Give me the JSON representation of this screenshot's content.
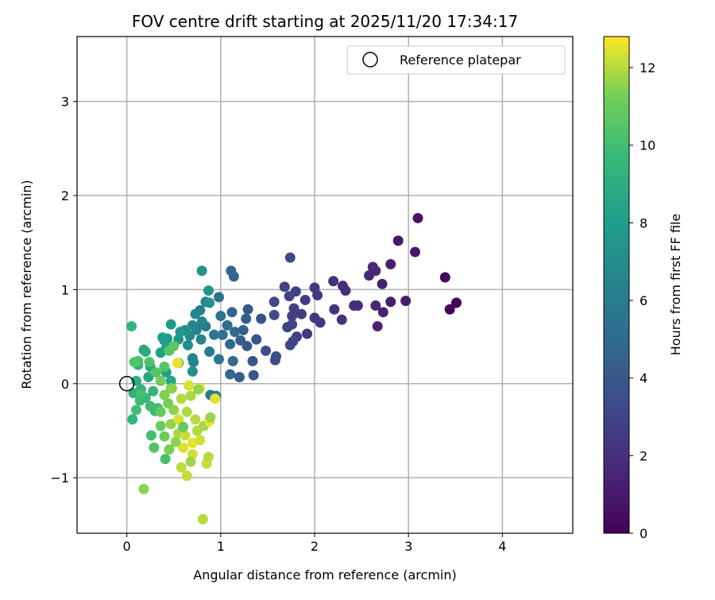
{
  "chart_data": {
    "type": "scatter",
    "title": "FOV centre drift starting at 2025/11/20 17:34:17",
    "xlabel": "Angular distance from reference (arcmin)",
    "ylabel": "Rotation from reference (arcmin)",
    "xlim": [
      -0.53,
      4.75
    ],
    "ylim": [
      -1.59,
      3.69
    ],
    "xticks": [
      0,
      1,
      2,
      3,
      4
    ],
    "yticks": [
      -1,
      0,
      1,
      2,
      3
    ],
    "ytick_labels": [
      "−1",
      "0",
      "1",
      "2",
      "3"
    ],
    "grid": true,
    "legend": {
      "placement": "top-right",
      "entries": [
        "Reference platepar"
      ]
    },
    "reference_point": [
      0,
      0
    ],
    "colorbar": {
      "label": "Hours from first FF file",
      "range": [
        0,
        12.8
      ],
      "ticks": [
        0,
        2,
        4,
        6,
        8,
        10,
        12
      ],
      "colormap": "viridis"
    },
    "colormap_stops": [
      "#440154",
      "#482878",
      "#3e4989",
      "#31688e",
      "#26828e",
      "#1f9e89",
      "#35b779",
      "#6ece58",
      "#fde725"
    ],
    "points_fields": [
      "x",
      "y",
      "hours"
    ],
    "points": [
      [
        3.51,
        0.86,
        0.1
      ],
      [
        3.44,
        0.79,
        0.2
      ],
      [
        3.39,
        1.13,
        0.3
      ],
      [
        3.1,
        1.76,
        0.8
      ],
      [
        3.07,
        1.4,
        0.9
      ],
      [
        2.89,
        1.52,
        1.0
      ],
      [
        2.97,
        0.88,
        1.1
      ],
      [
        2.81,
        1.27,
        1.2
      ],
      [
        2.81,
        0.87,
        1.2
      ],
      [
        2.72,
        1.06,
        1.3
      ],
      [
        2.73,
        0.76,
        1.4
      ],
      [
        2.67,
        0.61,
        1.4
      ],
      [
        2.65,
        0.83,
        1.5
      ],
      [
        2.62,
        1.24,
        1.5
      ],
      [
        2.58,
        1.15,
        1.6
      ],
      [
        2.65,
        1.2,
        1.6
      ],
      [
        2.46,
        0.83,
        1.8
      ],
      [
        2.42,
        0.83,
        1.9
      ],
      [
        2.33,
        0.99,
        2.0
      ],
      [
        2.3,
        1.04,
        2.0
      ],
      [
        2.29,
        0.68,
        2.1
      ],
      [
        2.2,
        1.09,
        2.1
      ],
      [
        2.21,
        0.79,
        2.2
      ],
      [
        2.06,
        0.65,
        2.3
      ],
      [
        2.03,
        0.94,
        2.3
      ],
      [
        2.0,
        1.02,
        2.4
      ],
      [
        2.0,
        0.7,
        2.4
      ],
      [
        1.9,
        0.89,
        2.5
      ],
      [
        1.92,
        0.53,
        2.5
      ],
      [
        1.86,
        0.74,
        2.6
      ],
      [
        1.8,
        0.98,
        2.7
      ],
      [
        1.81,
        0.5,
        2.7
      ],
      [
        1.78,
        0.8,
        2.8
      ],
      [
        1.76,
        0.72,
        2.8
      ],
      [
        1.73,
        0.93,
        2.9
      ],
      [
        1.68,
        1.03,
        2.9
      ],
      [
        1.74,
        1.34,
        3.1
      ],
      [
        1.71,
        0.6,
        3.0
      ],
      [
        1.76,
        0.63,
        3.0
      ],
      [
        1.74,
        0.41,
        3.1
      ],
      [
        1.77,
        0.45,
        3.1
      ],
      [
        1.57,
        0.87,
        3.3
      ],
      [
        1.57,
        0.73,
        3.3
      ],
      [
        1.58,
        0.25,
        3.4
      ],
      [
        1.59,
        0.29,
        3.4
      ],
      [
        1.48,
        0.35,
        3.5
      ],
      [
        1.43,
        0.69,
        3.6
      ],
      [
        1.38,
        0.47,
        3.7
      ],
      [
        1.35,
        0.09,
        3.8
      ],
      [
        1.34,
        0.24,
        3.9
      ],
      [
        1.29,
        0.79,
        4.0
      ],
      [
        1.28,
        0.4,
        4.1
      ],
      [
        1.27,
        0.69,
        4.2
      ],
      [
        1.2,
        0.07,
        4.3
      ],
      [
        1.21,
        0.46,
        4.4
      ],
      [
        1.24,
        0.57,
        4.5
      ],
      [
        1.12,
        0.76,
        4.6
      ],
      [
        1.11,
        1.2,
        4.7
      ],
      [
        1.14,
        1.14,
        4.7
      ],
      [
        1.1,
        0.1,
        4.8
      ],
      [
        1.1,
        0.42,
        4.9
      ],
      [
        1.13,
        0.24,
        5.0
      ],
      [
        1.15,
        0.55,
        5.1
      ],
      [
        1.07,
        0.62,
        5.2
      ],
      [
        1.02,
        0.52,
        5.3
      ],
      [
        1.0,
        0.72,
        5.4
      ],
      [
        0.98,
        0.92,
        5.5
      ],
      [
        0.98,
        0.26,
        5.6
      ],
      [
        0.93,
        0.52,
        5.7
      ],
      [
        0.88,
        0.34,
        5.8
      ],
      [
        0.84,
        0.61,
        5.9
      ],
      [
        0.8,
        0.63,
        6.0
      ],
      [
        0.78,
        0.78,
        6.1
      ],
      [
        0.84,
        0.87,
        6.2
      ],
      [
        0.74,
        0.57,
        6.3
      ],
      [
        0.71,
        0.23,
        6.4
      ],
      [
        0.7,
        0.27,
        6.5
      ],
      [
        0.8,
        0.66,
        6.5
      ],
      [
        0.79,
        0.47,
        6.6
      ],
      [
        0.73,
        0.74,
        6.7
      ],
      [
        0.7,
        0.62,
        6.8
      ],
      [
        0.67,
        0.51,
        6.9
      ],
      [
        0.65,
        0.41,
        7.0
      ],
      [
        0.62,
        0.57,
        7.1
      ],
      [
        0.7,
        0.13,
        7.2
      ],
      [
        0.89,
        -0.12,
        6.0
      ],
      [
        0.95,
        -0.13,
        5.5
      ],
      [
        0.8,
        1.2,
        7.3
      ],
      [
        0.88,
        0.86,
        7.4
      ],
      [
        0.87,
        0.99,
        7.5
      ],
      [
        0.57,
        0.55,
        7.5
      ],
      [
        0.55,
        0.47,
        7.6
      ],
      [
        0.47,
        0.63,
        7.7
      ],
      [
        0.43,
        0.48,
        7.8
      ],
      [
        0.4,
        0.46,
        7.9
      ],
      [
        0.38,
        0.49,
        8.0
      ],
      [
        0.42,
        0.38,
        8.1
      ],
      [
        0.36,
        0.33,
        8.2
      ],
      [
        0.42,
        0.12,
        8.3
      ],
      [
        0.55,
        0.22,
        8.4
      ],
      [
        0.47,
        0.03,
        8.5
      ],
      [
        0.23,
        0.07,
        8.6
      ],
      [
        0.25,
        0.18,
        8.7
      ],
      [
        0.18,
        0.36,
        8.8
      ],
      [
        0.2,
        0.34,
        8.9
      ],
      [
        0.12,
        0.2,
        9.0
      ],
      [
        0.1,
        0.03,
        9.1
      ],
      [
        0.07,
        -0.1,
        9.2
      ],
      [
        0.15,
        -0.06,
        9.3
      ],
      [
        0.05,
        0.61,
        9.4
      ],
      [
        0.06,
        -0.38,
        9.4
      ],
      [
        0.28,
        -0.08,
        9.5
      ],
      [
        0.2,
        -0.15,
        9.6
      ],
      [
        0.3,
        -0.29,
        9.7
      ],
      [
        0.14,
        -0.18,
        9.8
      ],
      [
        0.25,
        -0.24,
        9.9
      ],
      [
        0.33,
        -0.26,
        10.0
      ],
      [
        0.1,
        -0.28,
        10.0
      ],
      [
        0.15,
        -0.11,
        10.1
      ],
      [
        0.12,
        0.24,
        10.2
      ],
      [
        0.24,
        0.23,
        10.3
      ],
      [
        0.08,
        0.23,
        10.4
      ],
      [
        0.31,
        0.12,
        10.5
      ],
      [
        0.4,
        0.18,
        10.5
      ],
      [
        0.45,
        0.35,
        10.6
      ],
      [
        0.5,
        0.4,
        10.7
      ],
      [
        0.47,
        -0.05,
        10.8
      ],
      [
        0.36,
        -0.3,
        10.9
      ],
      [
        0.26,
        -0.55,
        10.0
      ],
      [
        0.29,
        -0.68,
        10.4
      ],
      [
        0.41,
        -0.8,
        10.2
      ],
      [
        0.36,
        -0.45,
        11.0
      ],
      [
        0.4,
        -0.56,
        11.1
      ],
      [
        0.18,
        -1.12,
        11.5
      ],
      [
        0.81,
        -1.44,
        12.0
      ],
      [
        0.64,
        -0.98,
        12.2
      ],
      [
        0.58,
        -0.89,
        12.1
      ],
      [
        0.85,
        -0.85,
        12.2
      ],
      [
        0.87,
        -0.78,
        12.0
      ],
      [
        0.7,
        -0.75,
        12.3
      ],
      [
        0.6,
        -0.68,
        12.4
      ],
      [
        0.7,
        -0.63,
        12.5
      ],
      [
        0.78,
        -0.6,
        12.3
      ],
      [
        0.52,
        -0.62,
        11.5
      ],
      [
        0.55,
        -0.53,
        11.8
      ],
      [
        0.62,
        -0.55,
        12.2
      ],
      [
        0.75,
        -0.5,
        12.0
      ],
      [
        0.82,
        -0.45,
        11.8
      ],
      [
        0.88,
        -0.4,
        12.6
      ],
      [
        0.89,
        -0.36,
        11.7
      ],
      [
        0.47,
        -0.43,
        11.6
      ],
      [
        0.55,
        -0.38,
        12.4
      ],
      [
        0.64,
        -0.3,
        11.9
      ],
      [
        0.5,
        -0.28,
        11.5
      ],
      [
        0.44,
        -0.21,
        11.3
      ],
      [
        0.58,
        -0.16,
        12.0
      ],
      [
        0.68,
        -0.13,
        11.9
      ],
      [
        0.4,
        -0.12,
        11.4
      ],
      [
        0.48,
        -0.05,
        11.5
      ],
      [
        0.66,
        -0.02,
        12.4
      ],
      [
        0.78,
        -0.05,
        12.7
      ],
      [
        0.94,
        -0.16,
        12.5
      ],
      [
        0.54,
        0.22,
        12.6
      ],
      [
        0.36,
        0.03,
        11.2
      ],
      [
        0.76,
        -0.06,
        11.6
      ],
      [
        0.73,
        -0.38,
        12.0
      ],
      [
        0.6,
        -0.46,
        11.0
      ],
      [
        0.45,
        -0.7,
        11.3
      ],
      [
        0.68,
        -0.83,
        11.7
      ]
    ]
  }
}
